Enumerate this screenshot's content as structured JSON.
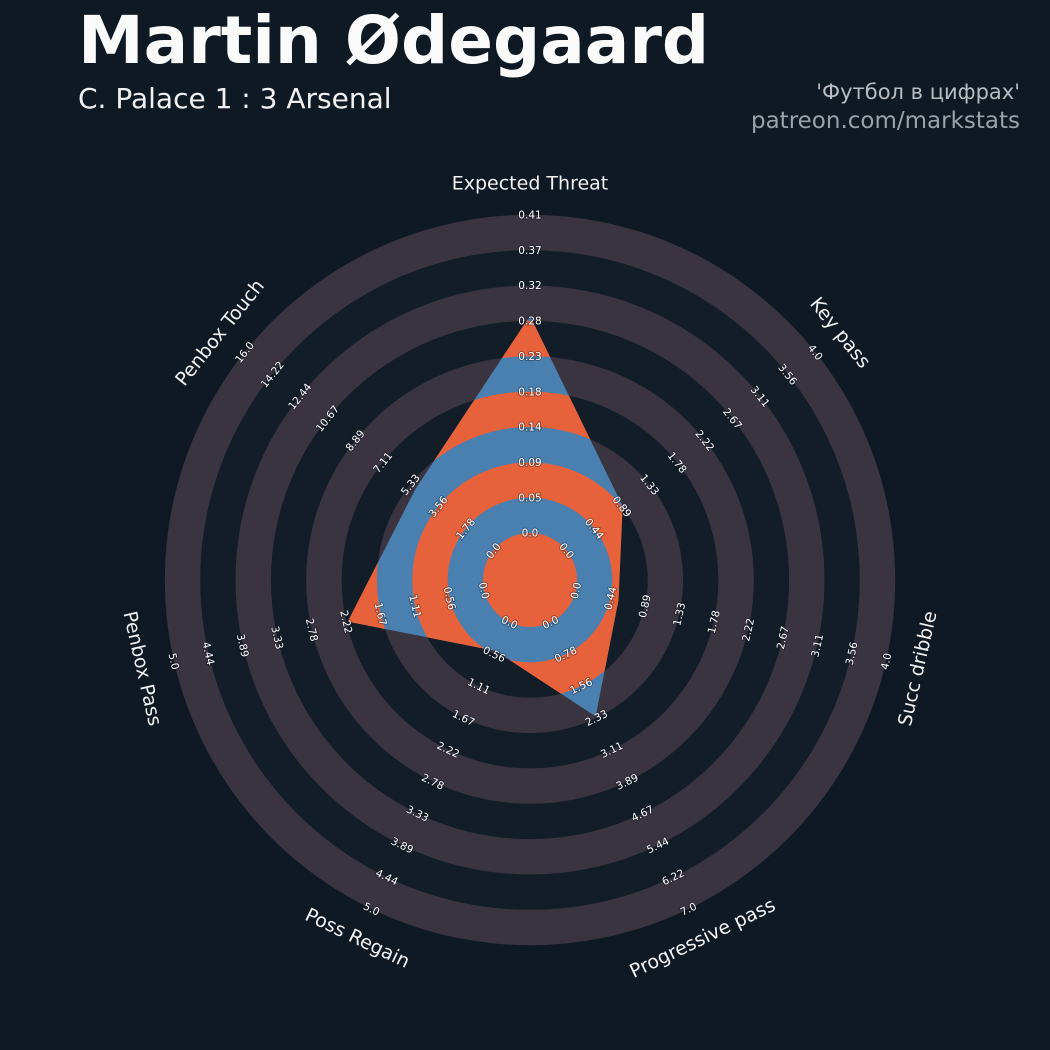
{
  "header": {
    "title": "Martin Ødegaard",
    "subtitle": "C. Palace 1 : 3 Arsenal",
    "watermark_line1": "'Футбол в цифрах'",
    "watermark_line2": "patreon.com/markstats"
  },
  "colors": {
    "background": "#0f1923",
    "ring_light": "#3a3441",
    "ring_dark": "#121d27",
    "radar_blue": "#4a80b0",
    "radar_orange": "#e7613b",
    "tick_text": "#ffffff",
    "axis_text": "#f2f2f2",
    "title_text": "#fafafa",
    "subtitle_text": "#f0f0f0",
    "watermark_primary": "#b8bdc3",
    "watermark_secondary": "#9ba2a9"
  },
  "chart_data": {
    "type": "radar",
    "title": "Martin Ødegaard",
    "subtitle": "C. Palace 1 : 3 Arsenal",
    "grid": "concentric-rings-alternating",
    "legend_position": "none",
    "num_rings": 9,
    "axes": [
      {
        "label": "Expected Threat",
        "min": 0,
        "max": 0.41,
        "value": 0.28,
        "ticks": [
          "0.0",
          "0.05",
          "0.09",
          "0.14",
          "0.18",
          "0.23",
          "0.28",
          "0.32",
          "0.37",
          "0.41"
        ]
      },
      {
        "label": "Key pass",
        "min": 0,
        "max": 4.0,
        "value": 0.9,
        "ticks": [
          "0.0",
          "0.44",
          "0.89",
          "1.33",
          "1.78",
          "2.22",
          "2.67",
          "3.11",
          "3.56",
          "4.0"
        ]
      },
      {
        "label": "Succ dribble",
        "min": 0,
        "max": 4.0,
        "value": 0.55,
        "ticks": [
          "0.0",
          "0.44",
          "0.89",
          "1.33",
          "1.78",
          "2.22",
          "2.67",
          "3.11",
          "3.56",
          "4.0"
        ]
      },
      {
        "label": "Progressive pass",
        "min": 0,
        "max": 7.0,
        "value": 2.3,
        "ticks": [
          "0.0",
          "0.78",
          "1.56",
          "2.33",
          "3.11",
          "3.89",
          "4.67",
          "5.44",
          "6.22",
          "7.0"
        ]
      },
      {
        "label": "Poss Regain",
        "min": 0,
        "max": 5.0,
        "value": 0.5,
        "ticks": [
          "0.0",
          "0.56",
          "1.11",
          "1.67",
          "2.22",
          "2.78",
          "3.33",
          "3.89",
          "4.44",
          "5.0"
        ]
      },
      {
        "label": "Penbox Pass",
        "min": 0,
        "max": 5.0,
        "value": 2.2,
        "ticks": [
          "0.0",
          "0.56",
          "1.11",
          "1.67",
          "2.22",
          "2.78",
          "3.33",
          "3.89",
          "4.44",
          "5.0"
        ]
      },
      {
        "label": "Penbox Touch",
        "min": 0,
        "max": 16.0,
        "value": 5.0,
        "ticks": [
          "0.0",
          "1.78",
          "3.56",
          "5.33",
          "7.11",
          "8.89",
          "10.67",
          "12.44",
          "14.22",
          "16.0"
        ]
      }
    ]
  }
}
